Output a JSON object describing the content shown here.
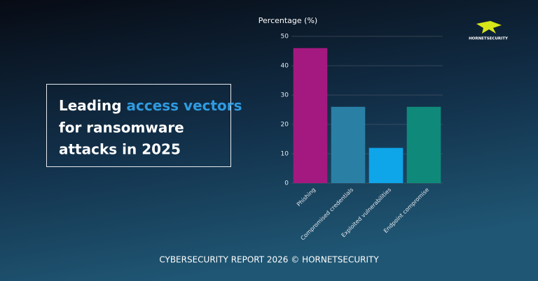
{
  "chart_data": {
    "type": "bar",
    "title": [
      "Leading",
      "access vectors",
      "for ransomware",
      "attacks in 2025"
    ],
    "y_label": "Percentage (%)",
    "categories": [
      "Phishing",
      "Compromised credentials",
      "Exploited vulnerabilities",
      "Endpoint compromise"
    ],
    "values": [
      46,
      26,
      12,
      26
    ],
    "colors": [
      "#a3197f",
      "#2a7fa5",
      "#0ea5e9",
      "#0f8a7a"
    ],
    "ylim": [
      0,
      50
    ],
    "yticks": [
      0,
      10,
      20,
      30,
      40,
      50
    ],
    "grid": true,
    "footer": "CYBERSECURITY REPORT 2026 © HORNETSECURITY",
    "brand": "HORNETSECURITY"
  }
}
